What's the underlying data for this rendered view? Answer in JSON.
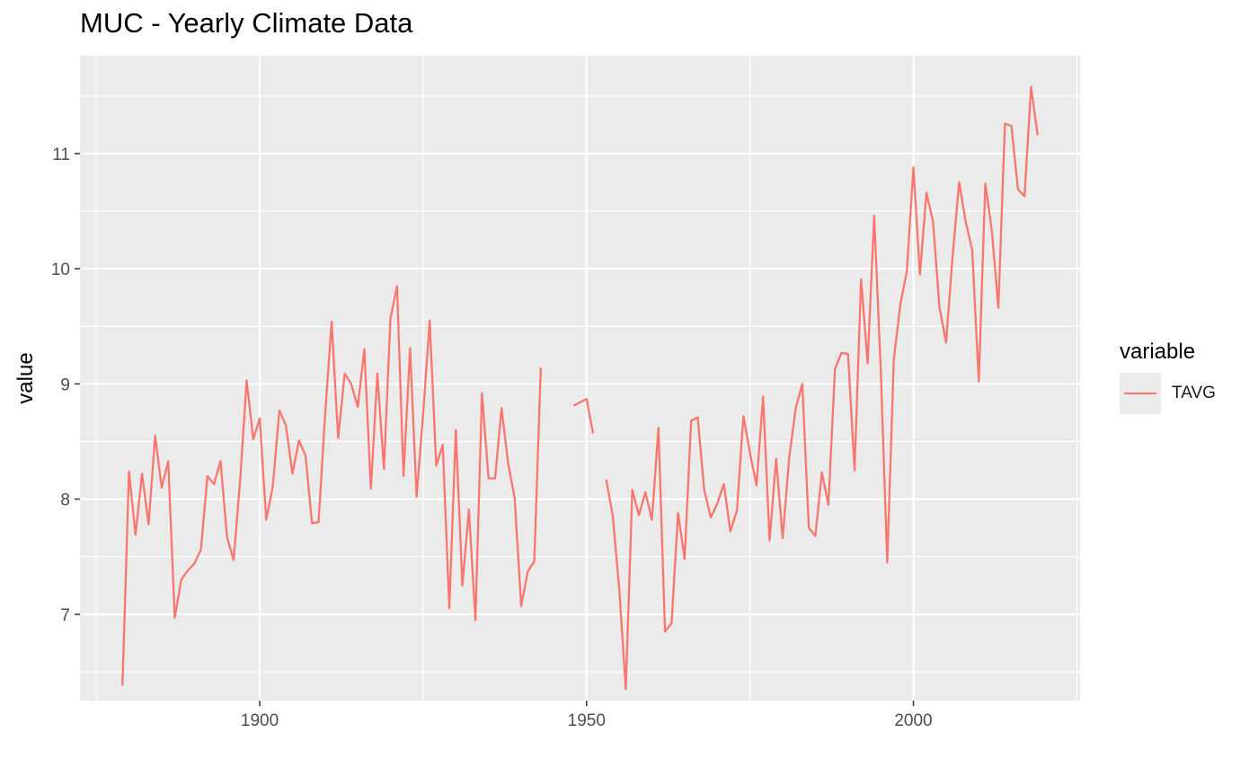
{
  "chart_data": {
    "type": "line",
    "title": "MUC - Yearly Climate Data",
    "xlabel": "",
    "ylabel": "value",
    "xlim": [
      1872.5,
      2025.5
    ],
    "ylim": [
      6.25,
      11.85
    ],
    "x_ticks": [
      1900,
      1950,
      2000
    ],
    "y_ticks": [
      7,
      8,
      9,
      10,
      11
    ],
    "grid": true,
    "legend_placement": "right",
    "legend": {
      "title": "variable",
      "entries": [
        "TAVG"
      ]
    },
    "colors": {
      "panel": "#ebebeb",
      "grid": "#ffffff",
      "line": "#F8766D"
    },
    "series": [
      {
        "name": "TAVG",
        "color": "#F8766D",
        "points": [
          [
            1879,
            6.38
          ],
          [
            1880,
            8.24
          ],
          [
            1881,
            7.69
          ],
          [
            1882,
            8.22
          ],
          [
            1883,
            7.78
          ],
          [
            1884,
            8.55
          ],
          [
            1885,
            8.1
          ],
          [
            1886,
            8.33
          ],
          [
            1887,
            6.97
          ],
          [
            1888,
            7.3
          ],
          [
            1889,
            7.38
          ],
          [
            1890,
            7.44
          ],
          [
            1891,
            7.56
          ],
          [
            1892,
            8.2
          ],
          [
            1893,
            8.13
          ],
          [
            1894,
            8.33
          ],
          [
            1895,
            7.67
          ],
          [
            1896,
            7.47
          ],
          [
            1897,
            8.16
          ],
          [
            1898,
            9.03
          ],
          [
            1899,
            8.52
          ],
          [
            1900,
            8.7
          ],
          [
            1901,
            7.82
          ],
          [
            1902,
            8.11
          ],
          [
            1903,
            8.77
          ],
          [
            1904,
            8.64
          ],
          [
            1905,
            8.22
          ],
          [
            1906,
            8.51
          ],
          [
            1907,
            8.38
          ],
          [
            1908,
            7.79
          ],
          [
            1909,
            7.8
          ],
          [
            1910,
            8.73
          ],
          [
            1911,
            9.54
          ],
          [
            1912,
            8.53
          ],
          [
            1913,
            9.09
          ],
          [
            1914,
            9.0
          ],
          [
            1915,
            8.8
          ],
          [
            1916,
            9.3
          ],
          [
            1917,
            8.09
          ],
          [
            1918,
            9.09
          ],
          [
            1919,
            8.26
          ],
          [
            1920,
            9.57
          ],
          [
            1921,
            9.85
          ],
          [
            1922,
            8.2
          ],
          [
            1923,
            9.31
          ],
          [
            1924,
            8.02
          ],
          [
            1925,
            8.74
          ],
          [
            1926,
            9.55
          ],
          [
            1927,
            8.29
          ],
          [
            1928,
            8.47
          ],
          [
            1929,
            7.05
          ],
          [
            1930,
            8.6
          ],
          [
            1931,
            7.25
          ],
          [
            1932,
            7.91
          ],
          [
            1933,
            6.95
          ],
          [
            1934,
            8.92
          ],
          [
            1935,
            8.18
          ],
          [
            1936,
            8.18
          ],
          [
            1937,
            8.79
          ],
          [
            1938,
            8.31
          ],
          [
            1939,
            8.01
          ],
          [
            1940,
            7.07
          ],
          [
            1941,
            7.37
          ],
          [
            1942,
            7.46
          ],
          [
            1943,
            9.14
          ],
          null,
          [
            1948,
            8.81
          ],
          [
            1950,
            8.87
          ],
          [
            1951,
            8.57
          ],
          null,
          [
            1953,
            8.17
          ],
          [
            1954,
            7.86
          ],
          [
            1955,
            7.22
          ],
          [
            1956,
            6.35
          ],
          [
            1957,
            8.08
          ],
          [
            1958,
            7.86
          ],
          [
            1959,
            8.06
          ],
          [
            1960,
            7.82
          ],
          [
            1961,
            8.62
          ],
          [
            1962,
            6.85
          ],
          [
            1963,
            6.92
          ],
          [
            1964,
            7.88
          ],
          [
            1965,
            7.48
          ],
          [
            1966,
            8.68
          ],
          [
            1967,
            8.71
          ],
          [
            1968,
            8.08
          ],
          [
            1969,
            7.84
          ],
          [
            1970,
            7.96
          ],
          [
            1971,
            8.13
          ],
          [
            1972,
            7.72
          ],
          [
            1973,
            7.9
          ],
          [
            1974,
            8.72
          ],
          [
            1975,
            8.4
          ],
          [
            1976,
            8.12
          ],
          [
            1977,
            8.89
          ],
          [
            1978,
            7.64
          ],
          [
            1979,
            8.35
          ],
          [
            1980,
            7.66
          ],
          [
            1981,
            8.36
          ],
          [
            1982,
            8.79
          ],
          [
            1983,
            9.0
          ],
          [
            1984,
            7.75
          ],
          [
            1985,
            7.68
          ],
          [
            1986,
            8.23
          ],
          [
            1987,
            7.95
          ],
          [
            1988,
            9.13
          ],
          [
            1989,
            9.27
          ],
          [
            1990,
            9.26
          ],
          [
            1991,
            8.25
          ],
          [
            1992,
            9.91
          ],
          [
            1993,
            9.18
          ],
          [
            1994,
            10.46
          ],
          [
            1995,
            9.13
          ],
          [
            1996,
            7.45
          ],
          [
            1997,
            9.21
          ],
          [
            1998,
            9.69
          ],
          [
            1999,
            9.98
          ],
          [
            2000,
            10.88
          ],
          [
            2001,
            9.95
          ],
          [
            2002,
            10.66
          ],
          [
            2003,
            10.41
          ],
          [
            2004,
            9.66
          ],
          [
            2005,
            9.36
          ],
          [
            2006,
            10.11
          ],
          [
            2007,
            10.75
          ],
          [
            2008,
            10.41
          ],
          [
            2009,
            10.16
          ],
          [
            2010,
            9.02
          ],
          [
            2011,
            10.74
          ],
          [
            2012,
            10.33
          ],
          [
            2013,
            9.66
          ],
          [
            2014,
            11.26
          ],
          [
            2015,
            11.24
          ],
          [
            2016,
            10.69
          ],
          [
            2017,
            10.63
          ],
          [
            2018,
            11.58
          ],
          [
            2019,
            11.16
          ]
        ]
      }
    ]
  }
}
